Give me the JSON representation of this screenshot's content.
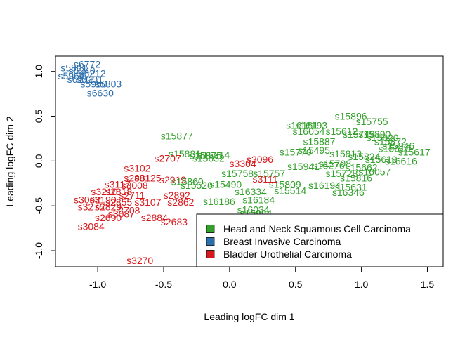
{
  "chart_data": {
    "type": "scatter",
    "title": "",
    "xlabel": "Leading logFC dim 1",
    "ylabel": "Leading logFC dim 2",
    "xlim": [
      -1.32,
      1.62
    ],
    "ylim": [
      -1.18,
      1.17
    ],
    "x_ticks": [
      -1.0,
      -0.5,
      0.0,
      0.5,
      1.0,
      1.5
    ],
    "x_tick_labels": [
      "-1.0",
      "-0.5",
      "0.0",
      "0.5",
      "1.0",
      "1.5"
    ],
    "y_ticks": [
      -1.0,
      -0.5,
      0.0,
      0.5,
      1.0
    ],
    "y_tick_labels": [
      "-1.0",
      "-0.5",
      "0.0",
      "0.5",
      "1.0"
    ],
    "legend_position": "bottom-right",
    "series": [
      {
        "name": "Head and Neck Squamous Cell Carcinoma",
        "color": "#33a02c",
        "points": [
          {
            "x": -0.4,
            "y": 0.28,
            "label": "s15877"
          },
          {
            "x": -0.34,
            "y": 0.08,
            "label": "s15881"
          },
          {
            "x": -0.18,
            "y": 0.06,
            "label": "s15875"
          },
          {
            "x": -0.12,
            "y": 0.07,
            "label": "s16314"
          },
          {
            "x": -0.16,
            "y": 0.03,
            "label": "s15632"
          },
          {
            "x": -0.32,
            "y": -0.23,
            "label": "s15860"
          },
          {
            "x": -0.25,
            "y": -0.27,
            "label": "s15520"
          },
          {
            "x": -0.03,
            "y": -0.26,
            "label": "s15490"
          },
          {
            "x": -0.08,
            "y": -0.45,
            "label": "s16186"
          },
          {
            "x": 0.06,
            "y": -0.14,
            "label": "s15758"
          },
          {
            "x": 0.16,
            "y": -0.34,
            "label": "s16334"
          },
          {
            "x": 0.18,
            "y": -0.54,
            "label": "s16034"
          },
          {
            "x": 0.22,
            "y": -0.43,
            "label": "s16184"
          },
          {
            "x": 0.2,
            "y": -0.58,
            "label": "s15884"
          },
          {
            "x": 0.3,
            "y": -0.14,
            "label": "s15757"
          },
          {
            "x": 0.42,
            "y": -0.26,
            "label": "s15809"
          },
          {
            "x": 0.46,
            "y": -0.33,
            "label": "s15514"
          },
          {
            "x": 0.55,
            "y": 0.4,
            "label": "s16161"
          },
          {
            "x": 0.62,
            "y": 0.4,
            "label": "s16193"
          },
          {
            "x": 0.6,
            "y": 0.33,
            "label": "s16054"
          },
          {
            "x": 0.68,
            "y": 0.22,
            "label": "s15887"
          },
          {
            "x": 0.5,
            "y": 0.1,
            "label": "s15770"
          },
          {
            "x": 0.64,
            "y": 0.12,
            "label": "s15495"
          },
          {
            "x": 0.56,
            "y": -0.06,
            "label": "s15941"
          },
          {
            "x": 0.75,
            "y": -0.05,
            "label": "s16276"
          },
          {
            "x": 0.72,
            "y": -0.27,
            "label": "s16194"
          },
          {
            "x": 0.9,
            "y": -0.35,
            "label": "s16346"
          },
          {
            "x": 0.92,
            "y": -0.29,
            "label": "s15631"
          },
          {
            "x": 0.92,
            "y": 0.5,
            "label": "s15896"
          },
          {
            "x": 1.08,
            "y": 0.44,
            "label": "s15755"
          },
          {
            "x": 0.85,
            "y": 0.33,
            "label": "s15612"
          },
          {
            "x": 0.98,
            "y": 0.3,
            "label": "s15749"
          },
          {
            "x": 1.1,
            "y": 0.3,
            "label": "s15890"
          },
          {
            "x": 1.16,
            "y": 0.26,
            "label": "s15620"
          },
          {
            "x": 1.22,
            "y": 0.22,
            "label": "s15872"
          },
          {
            "x": 1.28,
            "y": 0.17,
            "label": "s15946"
          },
          {
            "x": 1.25,
            "y": 0.14,
            "label": "s15610"
          },
          {
            "x": 1.4,
            "y": 0.1,
            "label": "s15617"
          },
          {
            "x": 0.88,
            "y": 0.08,
            "label": "s15813"
          },
          {
            "x": 1.02,
            "y": 0.05,
            "label": "s15824"
          },
          {
            "x": 1.15,
            "y": 0.02,
            "label": "s15619"
          },
          {
            "x": 1.3,
            "y": 0.0,
            "label": "s16616"
          },
          {
            "x": 0.8,
            "y": -0.03,
            "label": "s15708"
          },
          {
            "x": 1.0,
            "y": -0.07,
            "label": "s15662"
          },
          {
            "x": 1.1,
            "y": -0.12,
            "label": "s16057"
          },
          {
            "x": 0.85,
            "y": -0.14,
            "label": "s15728"
          },
          {
            "x": 0.96,
            "y": -0.19,
            "label": "s15816"
          }
        ]
      },
      {
        "name": "Breast Invasive Carcinoma",
        "color": "#2c6fad",
        "points": [
          {
            "x": -1.08,
            "y": 1.08,
            "label": "s6772"
          },
          {
            "x": -1.18,
            "y": 1.04,
            "label": "s5801"
          },
          {
            "x": -1.12,
            "y": 1.01,
            "label": "s6240"
          },
          {
            "x": -1.04,
            "y": 0.98,
            "label": "s6212"
          },
          {
            "x": -1.2,
            "y": 0.95,
            "label": "s5966"
          },
          {
            "x": -1.13,
            "y": 0.91,
            "label": "s6242"
          },
          {
            "x": -1.06,
            "y": 0.91,
            "label": "s6201"
          },
          {
            "x": -1.03,
            "y": 0.86,
            "label": "s5950"
          },
          {
            "x": -0.92,
            "y": 0.86,
            "label": "s5803"
          },
          {
            "x": -0.98,
            "y": 0.76,
            "label": "s6630"
          }
        ]
      },
      {
        "name": "Bladder Urothelial Carcinoma",
        "color": "#d7191c",
        "points": [
          {
            "x": -0.7,
            "y": -0.08,
            "label": "s3102"
          },
          {
            "x": -0.47,
            "y": 0.03,
            "label": "s2707"
          },
          {
            "x": 0.1,
            "y": -0.03,
            "label": "s3304"
          },
          {
            "x": 0.23,
            "y": 0.02,
            "label": "s3096"
          },
          {
            "x": 0.27,
            "y": -0.2,
            "label": "s3111"
          },
          {
            "x": -0.7,
            "y": -0.19,
            "label": "s2881"
          },
          {
            "x": -0.62,
            "y": -0.19,
            "label": "s3125"
          },
          {
            "x": -0.43,
            "y": -0.21,
            "label": "s2919"
          },
          {
            "x": -0.85,
            "y": -0.26,
            "label": "s3117"
          },
          {
            "x": -0.72,
            "y": -0.27,
            "label": "s3008"
          },
          {
            "x": -0.95,
            "y": -0.34,
            "label": "s3210"
          },
          {
            "x": -0.84,
            "y": -0.34,
            "label": "s2818"
          },
          {
            "x": -0.74,
            "y": -0.38,
            "label": "s2711"
          },
          {
            "x": -0.4,
            "y": -0.38,
            "label": "s2892"
          },
          {
            "x": -1.08,
            "y": -0.43,
            "label": "s3062"
          },
          {
            "x": -0.96,
            "y": -0.43,
            "label": "s3190"
          },
          {
            "x": -0.84,
            "y": -0.46,
            "label": "s2855"
          },
          {
            "x": -0.62,
            "y": -0.46,
            "label": "s3107"
          },
          {
            "x": -0.37,
            "y": -0.46,
            "label": "s2862"
          },
          {
            "x": -1.05,
            "y": -0.51,
            "label": "s3276"
          },
          {
            "x": -0.92,
            "y": -0.51,
            "label": "s2829"
          },
          {
            "x": -0.78,
            "y": -0.55,
            "label": "s2708"
          },
          {
            "x": -0.82,
            "y": -0.59,
            "label": "s3087"
          },
          {
            "x": -0.92,
            "y": -0.63,
            "label": "s2690"
          },
          {
            "x": -0.57,
            "y": -0.63,
            "label": "s2884"
          },
          {
            "x": -0.42,
            "y": -0.68,
            "label": "s2683"
          },
          {
            "x": -1.05,
            "y": -0.73,
            "label": "s3084"
          },
          {
            "x": -0.68,
            "y": -1.11,
            "label": "s3270"
          }
        ]
      }
    ]
  }
}
